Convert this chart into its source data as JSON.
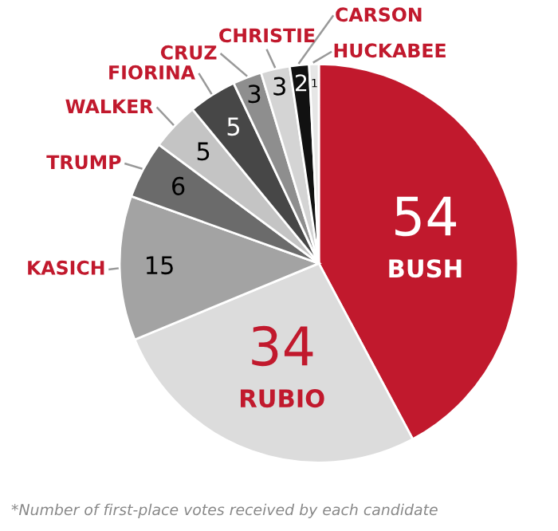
{
  "chart_data": {
    "type": "pie",
    "categories": [
      "BUSH",
      "RUBIO",
      "KASICH",
      "TRUMP",
      "WALKER",
      "FIORINA",
      "CRUZ",
      "CHRISTIE",
      "CARSON",
      "HUCKABEE"
    ],
    "values": [
      54,
      34,
      15,
      6,
      5,
      5,
      3,
      3,
      2,
      1
    ],
    "colors": [
      "#c1192d",
      "#dcdcdc",
      "#a3a3a3",
      "#6b6b6b",
      "#c4c4c4",
      "#474747",
      "#8e8e8e",
      "#d4d4d4",
      "#111111",
      "#e6e6e6"
    ],
    "data_labels": true,
    "annotations": [
      "*Number of first-place votes received by each candidate"
    ]
  }
}
